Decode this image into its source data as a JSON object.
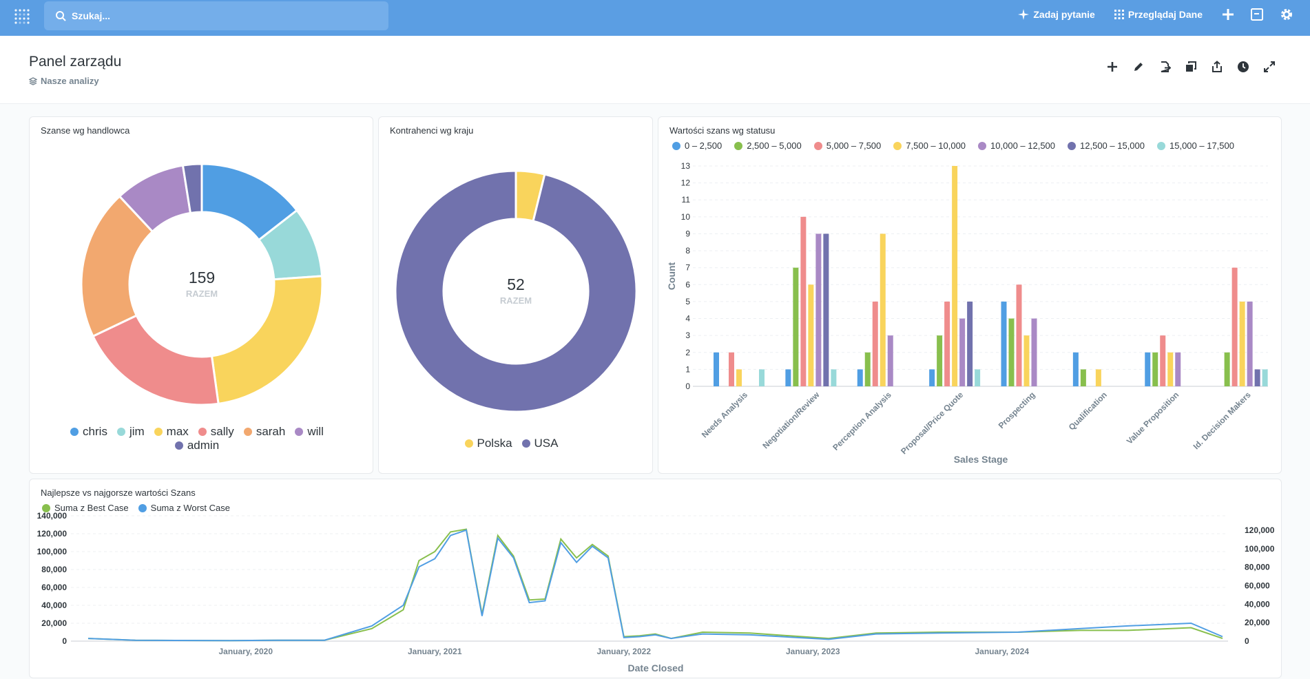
{
  "search": {
    "placeholder": "Szukaj..."
  },
  "nav": {
    "ask_label": "Zadaj pytanie",
    "browse_label": "Przeglądaj Dane"
  },
  "header": {
    "title": "Panel zarządu",
    "collection": "Nasze analizy"
  },
  "colors": {
    "nav": "#5b9ee3",
    "blue": "#509ee3",
    "teal": "#98d9d9",
    "yellow": "#f9d45c",
    "red": "#ef8c8c",
    "orange": "#f2a86f",
    "purple": "#a989c5",
    "indigo": "#7172ad",
    "green": "#88bf4d"
  },
  "cards": {
    "rep": {
      "title": "Szanse wg handlowca"
    },
    "country": {
      "title": "Kontrahenci wg kraju"
    },
    "status": {
      "title": "Wartości szans wg statusu"
    },
    "bestworst": {
      "title": "Najlepsze vs najgorsze wartości Szans"
    }
  },
  "chart_data": [
    {
      "type": "pie",
      "title": "Szanse wg handlowca",
      "total": 159,
      "total_label": "RAZEM",
      "slices": [
        {
          "name": "chris",
          "value": 23,
          "color": "#509ee3"
        },
        {
          "name": "jim",
          "value": 15,
          "color": "#98d9d9"
        },
        {
          "name": "max",
          "value": 38,
          "color": "#f9d45c"
        },
        {
          "name": "sally",
          "value": 32,
          "color": "#ef8c8c"
        },
        {
          "name": "sarah",
          "value": 32,
          "color": "#f2a86f"
        },
        {
          "name": "will",
          "value": 15,
          "color": "#a989c5"
        },
        {
          "name": "admin",
          "value": 4,
          "color": "#7172ad"
        }
      ]
    },
    {
      "type": "pie",
      "title": "Kontrahenci wg kraju",
      "total": 52,
      "total_label": "RAZEM",
      "slices": [
        {
          "name": "Polska",
          "value": 2,
          "color": "#f9d45c"
        },
        {
          "name": "USA",
          "value": 50,
          "color": "#7172ad"
        }
      ]
    },
    {
      "type": "bar",
      "title": "Wartości szans wg statusu",
      "xlabel": "Sales Stage",
      "ylabel": "Count",
      "ylim": [
        0,
        13
      ],
      "yticks": [
        "0",
        "1",
        "2",
        "3",
        "4",
        "5",
        "6",
        "7",
        "8",
        "9",
        "10",
        "11",
        "12",
        "13"
      ],
      "categories": [
        "Needs Analysis",
        "Negotiation/Review",
        "Perception Analysis",
        "Proposal/Price Quote",
        "Prospecting",
        "Qualification",
        "Value Proposition",
        "Id. Decision Makers"
      ],
      "series": [
        {
          "name": "0 – 2,500",
          "color": "#509ee3",
          "values": [
            2,
            1,
            1,
            1,
            5,
            2,
            2,
            0
          ]
        },
        {
          "name": "2,500 – 5,000",
          "color": "#88bf4d",
          "values": [
            0,
            7,
            2,
            3,
            4,
            1,
            2,
            2
          ]
        },
        {
          "name": "5,000 – 7,500",
          "color": "#ef8c8c",
          "values": [
            2,
            10,
            5,
            5,
            6,
            0,
            3,
            7
          ]
        },
        {
          "name": "7,500 – 10,000",
          "color": "#f9d45c",
          "values": [
            1,
            6,
            9,
            13,
            3,
            1,
            2,
            5
          ]
        },
        {
          "name": "10,000 – 12,500",
          "color": "#a989c5",
          "values": [
            0,
            9,
            3,
            4,
            4,
            0,
            2,
            5
          ]
        },
        {
          "name": "12,500 – 15,000",
          "color": "#7172ad",
          "values": [
            0,
            9,
            0,
            5,
            0,
            0,
            0,
            1
          ]
        },
        {
          "name": "15,000 – 17,500",
          "color": "#98d9d9",
          "values": [
            1,
            1,
            0,
            1,
            0,
            0,
            0,
            1
          ]
        }
      ]
    },
    {
      "type": "line",
      "title": "Najlepsze vs najgorsze wartości Szans",
      "xlabel": "Date Closed",
      "xticks": [
        "January, 2020",
        "January, 2021",
        "January, 2022",
        "January, 2023",
        "January, 2024"
      ],
      "yticks_left": [
        "0",
        "20,000",
        "40,000",
        "60,000",
        "80,000",
        "100,000",
        "120,000",
        "140,000"
      ],
      "yticks_right": [
        "0",
        "20,000",
        "40,000",
        "60,000",
        "80,000",
        "100,000",
        "120,000"
      ],
      "ylim": [
        0,
        140000
      ],
      "x": [
        "2019-03",
        "2019-06",
        "2019-12",
        "2020-03",
        "2020-06",
        "2020-09",
        "2020-11",
        "2020-12",
        "2021-01",
        "2021-02",
        "2021-03",
        "2021-04",
        "2021-05",
        "2021-06",
        "2021-07",
        "2021-08",
        "2021-09",
        "2021-10",
        "2021-11",
        "2021-12",
        "2022-01",
        "2022-02",
        "2022-03",
        "2022-04",
        "2022-06",
        "2022-09",
        "2023-02",
        "2023-05",
        "2023-09",
        "2024-02",
        "2024-06",
        "2024-09",
        "2025-01",
        "2025-03"
      ],
      "series": [
        {
          "name": "Suma z Best Case",
          "color": "#88bf4d",
          "values": [
            3000,
            1000,
            500,
            1000,
            1000,
            14000,
            35000,
            90000,
            100000,
            122000,
            125000,
            30000,
            118000,
            95000,
            46000,
            47000,
            114000,
            93000,
            108000,
            95000,
            5000,
            6000,
            8000,
            3000,
            10000,
            9000,
            3000,
            9000,
            10000,
            10000,
            12000,
            12000,
            15000,
            3000
          ]
        },
        {
          "name": "Suma z Worst Case",
          "color": "#509ee3",
          "values": [
            3000,
            1000,
            500,
            1000,
            1000,
            17000,
            40000,
            83000,
            92000,
            118000,
            124000,
            28000,
            115000,
            93000,
            43000,
            45000,
            110000,
            88000,
            106000,
            93000,
            4000,
            5000,
            7000,
            3000,
            8000,
            7000,
            2000,
            8000,
            9000,
            10000,
            14000,
            17000,
            20000,
            5000
          ]
        }
      ]
    }
  ]
}
